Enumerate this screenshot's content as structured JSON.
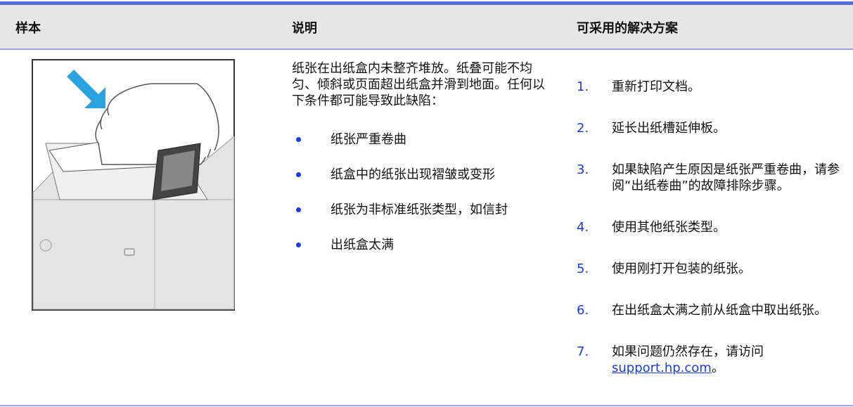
{
  "header": {
    "columns": [
      "样本",
      "说明",
      "可采用的解决方案"
    ]
  },
  "description": {
    "text": "纸张在出纸盒内未整齐堆放。纸叠可能不均匀、倾斜或页面超出纸盒并滑到地面。任何以下条件都可能导致此缺陷：",
    "bullets": [
      "纸张严重卷曲",
      "纸盒中的纸张出现褶皱或变形",
      "纸张为非标准纸张类型，如信封",
      "出纸盒太满"
    ]
  },
  "solutions": {
    "items": [
      {
        "number": "1.",
        "text": "重新打印文档。"
      },
      {
        "number": "2.",
        "text": "延长出纸槽延伸板。"
      },
      {
        "number": "3.",
        "text": "如果缺陷产生原因是纸张严重卷曲，请参阅“出纸卷曲”的故障排除步骤。"
      },
      {
        "number": "4.",
        "text": "使用其他纸张类型。"
      },
      {
        "number": "5.",
        "text": "使用刚打开包装的纸张。"
      },
      {
        "number": "6.",
        "text": "在出纸盒太满之前从纸盒中取出纸张。"
      },
      {
        "number": "7.",
        "text": "如果问题仍然存在，请访问",
        "link": "support.hp.com",
        "suffix": "。"
      }
    ]
  }
}
